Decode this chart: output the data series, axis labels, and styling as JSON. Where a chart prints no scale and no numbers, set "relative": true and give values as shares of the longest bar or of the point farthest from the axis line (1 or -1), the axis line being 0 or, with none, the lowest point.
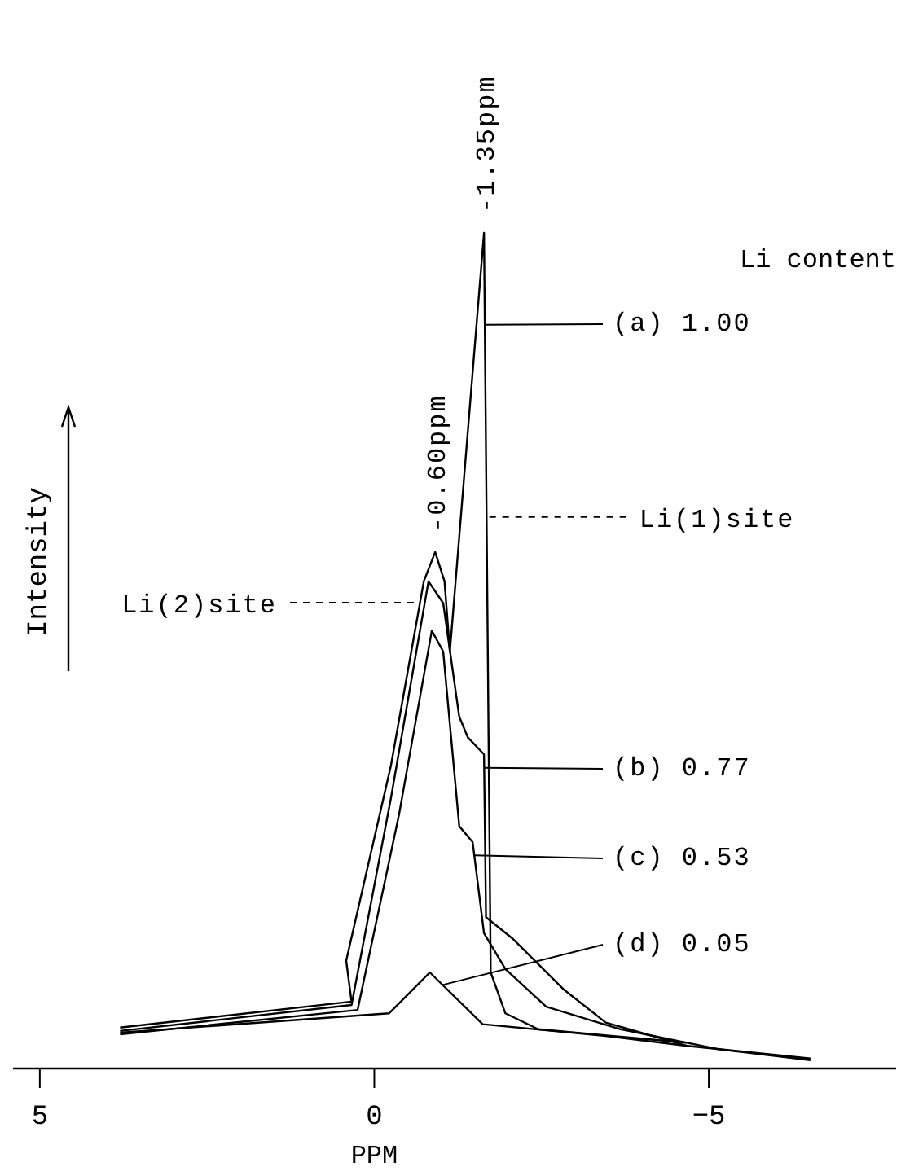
{
  "chart_data": {
    "type": "line",
    "relative": true,
    "xlabel": "PPM",
    "ylabel": "Intensity",
    "legend_title": "Li content",
    "legend": "right",
    "xlim": [
      5.4,
      -7.8
    ],
    "xticks": [
      5,
      0,
      -5
    ],
    "series": [
      {
        "name": "(a) 1.00",
        "color": "#000000",
        "x": [
          3.8,
          0.34,
          0.42,
          -0.25,
          -0.74,
          -0.91,
          -1.05,
          -1.13,
          -1.64,
          -1.74,
          -1.96,
          -2.45,
          -4.66
        ],
        "values": [
          0.049,
          0.08,
          0.129,
          0.363,
          0.583,
          0.618,
          0.583,
          0.499,
          1.0,
          0.115,
          0.066,
          0.047,
          0.031
        ]
      },
      {
        "name": "(b) 0.77",
        "color": "#000000",
        "x": [
          3.8,
          0.34,
          -0.25,
          -0.81,
          -1.03,
          -1.27,
          -1.4,
          -1.64,
          -1.67,
          -2.06,
          -2.84,
          -3.46,
          -4.68,
          -6.52
        ],
        "values": [
          0.045,
          0.076,
          0.324,
          0.583,
          0.557,
          0.421,
          0.396,
          0.376,
          0.181,
          0.156,
          0.094,
          0.055,
          0.027,
          0.012
        ]
      },
      {
        "name": "(c) 0.53",
        "color": "#000000",
        "x": [
          3.8,
          0.25,
          -0.37,
          -0.86,
          -1.03,
          -1.27,
          -1.47,
          -1.64,
          -1.96,
          -2.57,
          -3.68,
          -5.15,
          -6.52
        ],
        "values": [
          0.041,
          0.07,
          0.304,
          0.524,
          0.499,
          0.29,
          0.271,
          0.162,
          0.119,
          0.074,
          0.047,
          0.023,
          0.01
        ]
      },
      {
        "name": "(d) 0.05",
        "color": "#000000",
        "x": [
          3.8,
          -0.22,
          -0.83,
          -1.62,
          -3.46,
          -4.68
        ],
        "values": [
          0.043,
          0.066,
          0.115,
          0.053,
          0.039,
          0.027
        ]
      }
    ],
    "annotations": [
      {
        "text": "-1.35ppm",
        "x": -1.64,
        "y": 1.0
      },
      {
        "text": "-0.60ppm",
        "x": -0.91,
        "y": 0.618
      },
      {
        "text": "Li(1)site",
        "x": -1.72,
        "y": 0.66
      },
      "Li(2)site"
    ]
  }
}
